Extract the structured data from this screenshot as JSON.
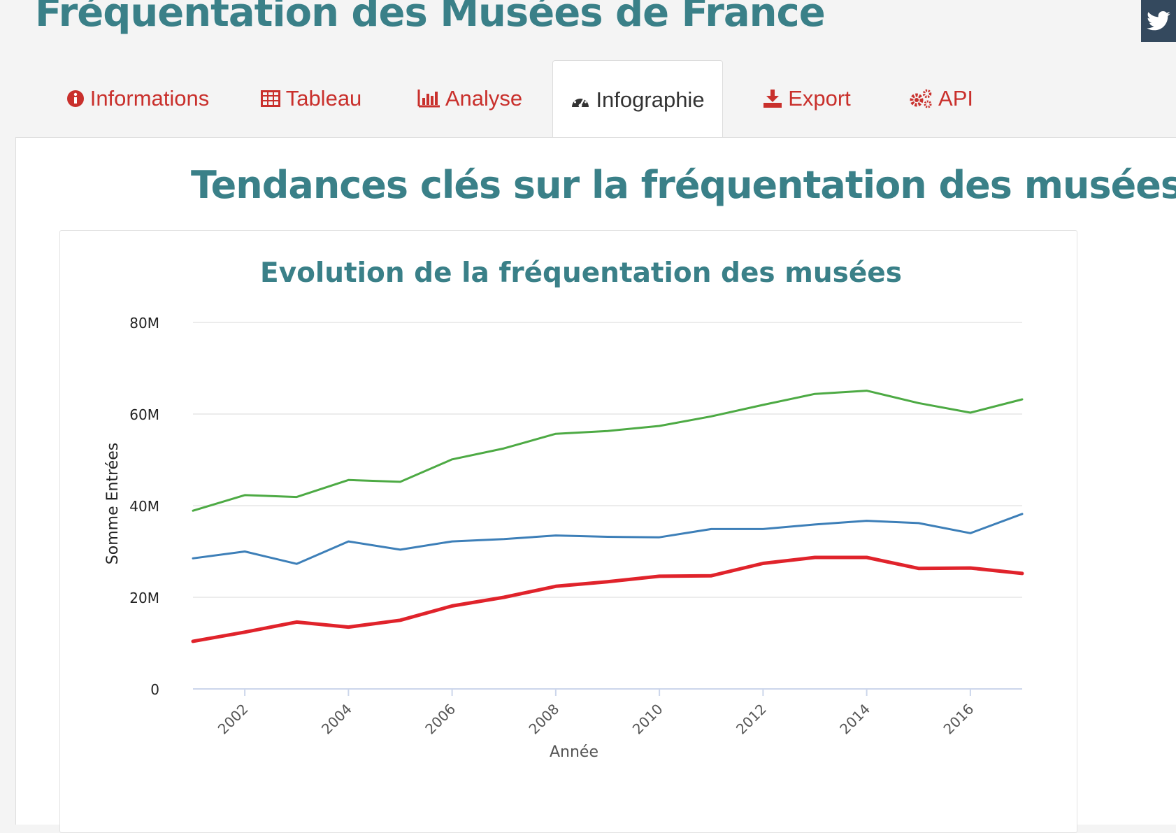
{
  "header": {
    "title": "Fréquentation des Musées de France",
    "twitter_icon": "twitter-icon"
  },
  "tabs": [
    {
      "label": "Informations",
      "icon": "info-circle-icon",
      "active": false
    },
    {
      "label": "Tableau",
      "icon": "table-icon",
      "active": false
    },
    {
      "label": "Analyse",
      "icon": "bar-chart-icon",
      "active": false
    },
    {
      "label": "Infographie",
      "icon": "dashboard-gauge-icon",
      "active": true
    },
    {
      "label": "Export",
      "icon": "download-icon",
      "active": false
    },
    {
      "label": "API",
      "icon": "gears-icon",
      "active": false
    }
  ],
  "colors": {
    "title": "#3a8088",
    "tab_link": "#c9302c",
    "twitter_bg": "#34495e"
  },
  "main": {
    "section_title": "Tendances clés sur la fréquentation des musées"
  },
  "chart_data": {
    "type": "line",
    "title": "Evolution de la fréquentation des musées",
    "xlabel": "Année",
    "ylabel": "Somme Entrées",
    "x": [
      2001,
      2002,
      2003,
      2004,
      2005,
      2006,
      2007,
      2008,
      2009,
      2010,
      2011,
      2012,
      2013,
      2014,
      2015,
      2016,
      2017
    ],
    "xticks": [
      2002,
      2004,
      2006,
      2008,
      2010,
      2012,
      2014,
      2016
    ],
    "ylim": [
      0,
      80000000
    ],
    "yticks": [
      0,
      20000000,
      40000000,
      60000000,
      80000000
    ],
    "ytick_labels": [
      "0",
      "20M",
      "40M",
      "60M",
      "80M"
    ],
    "grid": true,
    "legend": "none",
    "series": [
      {
        "color": "#4daa44",
        "width": 3,
        "values": [
          38900000,
          42300000,
          41900000,
          45600000,
          45200000,
          50100000,
          52500000,
          55700000,
          56300000,
          57400000,
          59500000,
          62000000,
          64400000,
          65100000,
          62400000,
          60300000,
          63200000
        ]
      },
      {
        "color": "#3d7fb8",
        "width": 3,
        "values": [
          28500000,
          30000000,
          27300000,
          32200000,
          30400000,
          32200000,
          32700000,
          33500000,
          33200000,
          33100000,
          34900000,
          34900000,
          35900000,
          36700000,
          36200000,
          34000000,
          38200000
        ]
      },
      {
        "color": "#e0232b",
        "width": 5,
        "values": [
          10400000,
          12400000,
          14600000,
          13500000,
          15000000,
          18100000,
          20000000,
          22400000,
          23400000,
          24600000,
          24700000,
          27400000,
          28700000,
          28700000,
          26300000,
          26400000,
          25200000
        ]
      }
    ]
  }
}
